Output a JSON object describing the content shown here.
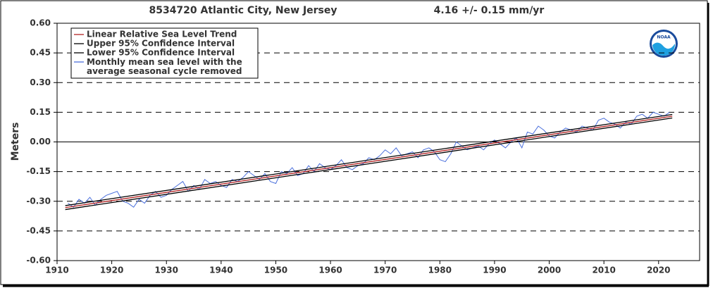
{
  "chart_data": {
    "type": "line",
    "title": "8534720 Atlantic City, New Jersey",
    "subtitle": "4.16 +/-  0.15 mm/yr",
    "ylabel": "Meters",
    "xlim": [
      1910,
      2027.5
    ],
    "ylim": [
      -0.6,
      0.6
    ],
    "xticks": [
      1910,
      1920,
      1930,
      1940,
      1950,
      1960,
      1970,
      1980,
      1990,
      2000,
      2010,
      2020
    ],
    "yticks": [
      {
        "value": -0.6,
        "label": "-0.60"
      },
      {
        "value": -0.45,
        "label": "-0.45"
      },
      {
        "value": -0.3,
        "label": "-0.30"
      },
      {
        "value": -0.15,
        "label": "-0.15"
      },
      {
        "value": 0,
        "label": "0.00"
      },
      {
        "value": 0.15,
        "label": "0.15"
      },
      {
        "value": 0.3,
        "label": "0.30"
      },
      {
        "value": 0.45,
        "label": "0.45"
      },
      {
        "value": 0.6,
        "label": "0.60"
      }
    ],
    "grid": true,
    "legend": "upper left",
    "series": [
      {
        "name": "Linear Relative Sea Level Trend",
        "color": "#b22222",
        "x": [
          1911.5,
          2022.5
        ],
        "values": [
          -0.332,
          0.13
        ]
      },
      {
        "name": "Upper 95% Confidence Interval",
        "color": "#000000",
        "x": [
          1911.5,
          2022.5
        ],
        "values": [
          -0.322,
          0.139
        ]
      },
      {
        "name": "Lower 95% Confidence Interval",
        "color": "#000000",
        "x": [
          1911.5,
          2022.5
        ],
        "values": [
          -0.342,
          0.121
        ]
      },
      {
        "name": "Monthly mean sea level with the\naverage seasonal cycle removed",
        "color": "#4a6fdc",
        "x": [
          1912,
          1913,
          1914,
          1915,
          1916,
          1917,
          1918,
          1919,
          1920,
          1921,
          1922,
          1923,
          1924,
          1925,
          1926,
          1927,
          1928,
          1929,
          1930,
          1931,
          1932,
          1933,
          1934,
          1935,
          1936,
          1937,
          1938,
          1939,
          1940,
          1941,
          1942,
          1943,
          1944,
          1945,
          1946,
          1947,
          1948,
          1949,
          1950,
          1951,
          1952,
          1953,
          1954,
          1955,
          1956,
          1957,
          1958,
          1959,
          1960,
          1961,
          1962,
          1963,
          1964,
          1965,
          1966,
          1967,
          1968,
          1969,
          1970,
          1971,
          1972,
          1973,
          1974,
          1975,
          1976,
          1977,
          1978,
          1979,
          1980,
          1981,
          1982,
          1983,
          1984,
          1985,
          1986,
          1987,
          1988,
          1989,
          1990,
          1991,
          1992,
          1993,
          1994,
          1995,
          1996,
          1997,
          1998,
          1999,
          2000,
          2001,
          2002,
          2003,
          2004,
          2005,
          2006,
          2007,
          2008,
          2009,
          2010,
          2011,
          2012,
          2013,
          2014,
          2015,
          2016,
          2017,
          2018,
          2019,
          2020,
          2021,
          2022
        ],
        "values": [
          -0.31,
          -0.33,
          -0.29,
          -0.31,
          -0.28,
          -0.32,
          -0.29,
          -0.27,
          -0.26,
          -0.25,
          -0.3,
          -0.31,
          -0.33,
          -0.29,
          -0.31,
          -0.27,
          -0.25,
          -0.28,
          -0.27,
          -0.24,
          -0.22,
          -0.2,
          -0.25,
          -0.22,
          -0.24,
          -0.19,
          -0.21,
          -0.2,
          -0.22,
          -0.23,
          -0.19,
          -0.2,
          -0.18,
          -0.15,
          -0.17,
          -0.19,
          -0.16,
          -0.2,
          -0.21,
          -0.15,
          -0.16,
          -0.13,
          -0.17,
          -0.16,
          -0.12,
          -0.15,
          -0.11,
          -0.13,
          -0.14,
          -0.12,
          -0.09,
          -0.13,
          -0.14,
          -0.12,
          -0.11,
          -0.08,
          -0.09,
          -0.07,
          -0.04,
          -0.06,
          -0.03,
          -0.07,
          -0.06,
          -0.05,
          -0.08,
          -0.04,
          -0.03,
          -0.05,
          -0.09,
          -0.1,
          -0.06,
          0.0,
          -0.02,
          -0.04,
          -0.03,
          -0.02,
          -0.04,
          -0.01,
          0.01,
          -0.01,
          -0.03,
          0.0,
          0.02,
          -0.03,
          0.05,
          0.04,
          0.08,
          0.06,
          0.03,
          0.02,
          0.05,
          0.07,
          0.06,
          0.05,
          0.08,
          0.07,
          0.06,
          0.11,
          0.12,
          0.1,
          0.09,
          0.07,
          0.1,
          0.09,
          0.13,
          0.14,
          0.12,
          0.15,
          0.14,
          0.13,
          0.15
        ]
      }
    ]
  }
}
